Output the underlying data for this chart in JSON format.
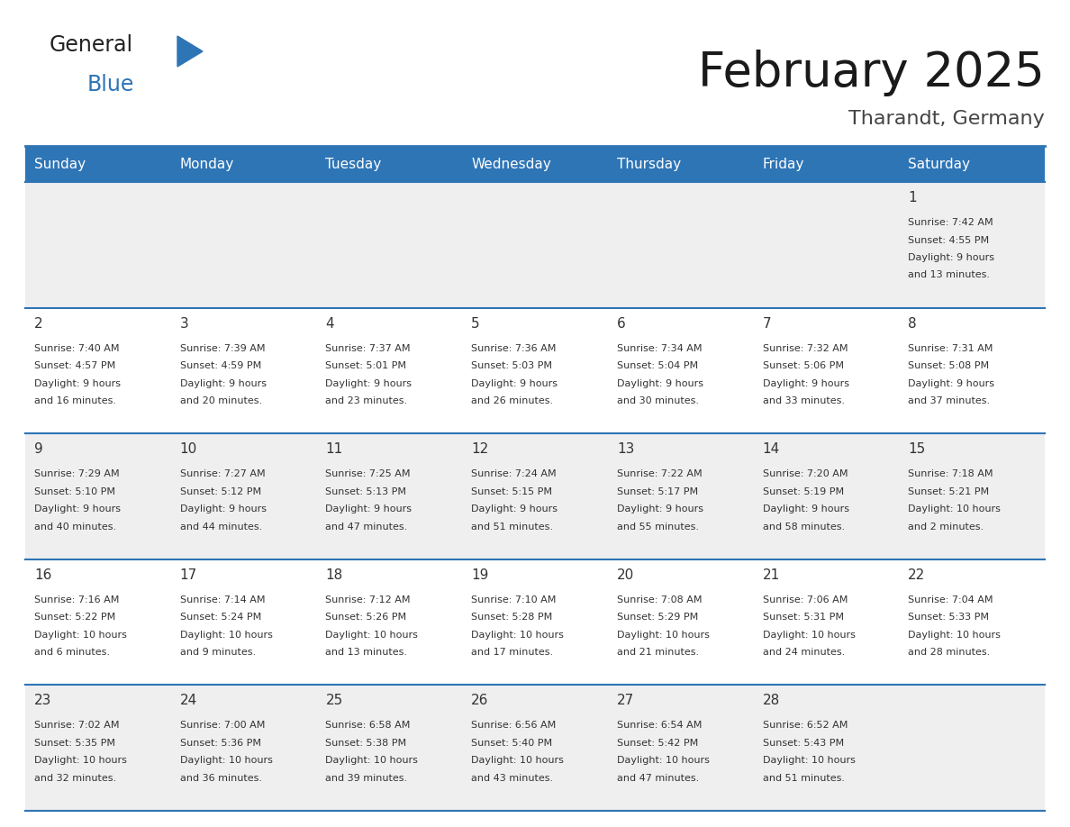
{
  "title": "February 2025",
  "subtitle": "Tharandt, Germany",
  "header_bg": "#2E75B6",
  "header_text_color": "#FFFFFF",
  "cell_bg_odd": "#EFEFEF",
  "cell_bg_even": "#FFFFFF",
  "border_color": "#2E75B6",
  "text_color": "#333333",
  "day_names": [
    "Sunday",
    "Monday",
    "Tuesday",
    "Wednesday",
    "Thursday",
    "Friday",
    "Saturday"
  ],
  "days": [
    {
      "day": 1,
      "col": 6,
      "row": 0,
      "sunrise": "7:42 AM",
      "sunset": "4:55 PM",
      "daylight_h": "9 hours",
      "daylight_m": "13 minutes"
    },
    {
      "day": 2,
      "col": 0,
      "row": 1,
      "sunrise": "7:40 AM",
      "sunset": "4:57 PM",
      "daylight_h": "9 hours",
      "daylight_m": "16 minutes"
    },
    {
      "day": 3,
      "col": 1,
      "row": 1,
      "sunrise": "7:39 AM",
      "sunset": "4:59 PM",
      "daylight_h": "9 hours",
      "daylight_m": "20 minutes"
    },
    {
      "day": 4,
      "col": 2,
      "row": 1,
      "sunrise": "7:37 AM",
      "sunset": "5:01 PM",
      "daylight_h": "9 hours",
      "daylight_m": "23 minutes"
    },
    {
      "day": 5,
      "col": 3,
      "row": 1,
      "sunrise": "7:36 AM",
      "sunset": "5:03 PM",
      "daylight_h": "9 hours",
      "daylight_m": "26 minutes"
    },
    {
      "day": 6,
      "col": 4,
      "row": 1,
      "sunrise": "7:34 AM",
      "sunset": "5:04 PM",
      "daylight_h": "9 hours",
      "daylight_m": "30 minutes"
    },
    {
      "day": 7,
      "col": 5,
      "row": 1,
      "sunrise": "7:32 AM",
      "sunset": "5:06 PM",
      "daylight_h": "9 hours",
      "daylight_m": "33 minutes"
    },
    {
      "day": 8,
      "col": 6,
      "row": 1,
      "sunrise": "7:31 AM",
      "sunset": "5:08 PM",
      "daylight_h": "9 hours",
      "daylight_m": "37 minutes"
    },
    {
      "day": 9,
      "col": 0,
      "row": 2,
      "sunrise": "7:29 AM",
      "sunset": "5:10 PM",
      "daylight_h": "9 hours",
      "daylight_m": "40 minutes"
    },
    {
      "day": 10,
      "col": 1,
      "row": 2,
      "sunrise": "7:27 AM",
      "sunset": "5:12 PM",
      "daylight_h": "9 hours",
      "daylight_m": "44 minutes"
    },
    {
      "day": 11,
      "col": 2,
      "row": 2,
      "sunrise": "7:25 AM",
      "sunset": "5:13 PM",
      "daylight_h": "9 hours",
      "daylight_m": "47 minutes"
    },
    {
      "day": 12,
      "col": 3,
      "row": 2,
      "sunrise": "7:24 AM",
      "sunset": "5:15 PM",
      "daylight_h": "9 hours",
      "daylight_m": "51 minutes"
    },
    {
      "day": 13,
      "col": 4,
      "row": 2,
      "sunrise": "7:22 AM",
      "sunset": "5:17 PM",
      "daylight_h": "9 hours",
      "daylight_m": "55 minutes"
    },
    {
      "day": 14,
      "col": 5,
      "row": 2,
      "sunrise": "7:20 AM",
      "sunset": "5:19 PM",
      "daylight_h": "9 hours",
      "daylight_m": "58 minutes"
    },
    {
      "day": 15,
      "col": 6,
      "row": 2,
      "sunrise": "7:18 AM",
      "sunset": "5:21 PM",
      "daylight_h": "10 hours",
      "daylight_m": "2 minutes"
    },
    {
      "day": 16,
      "col": 0,
      "row": 3,
      "sunrise": "7:16 AM",
      "sunset": "5:22 PM",
      "daylight_h": "10 hours",
      "daylight_m": "6 minutes"
    },
    {
      "day": 17,
      "col": 1,
      "row": 3,
      "sunrise": "7:14 AM",
      "sunset": "5:24 PM",
      "daylight_h": "10 hours",
      "daylight_m": "9 minutes"
    },
    {
      "day": 18,
      "col": 2,
      "row": 3,
      "sunrise": "7:12 AM",
      "sunset": "5:26 PM",
      "daylight_h": "10 hours",
      "daylight_m": "13 minutes"
    },
    {
      "day": 19,
      "col": 3,
      "row": 3,
      "sunrise": "7:10 AM",
      "sunset": "5:28 PM",
      "daylight_h": "10 hours",
      "daylight_m": "17 minutes"
    },
    {
      "day": 20,
      "col": 4,
      "row": 3,
      "sunrise": "7:08 AM",
      "sunset": "5:29 PM",
      "daylight_h": "10 hours",
      "daylight_m": "21 minutes"
    },
    {
      "day": 21,
      "col": 5,
      "row": 3,
      "sunrise": "7:06 AM",
      "sunset": "5:31 PM",
      "daylight_h": "10 hours",
      "daylight_m": "24 minutes"
    },
    {
      "day": 22,
      "col": 6,
      "row": 3,
      "sunrise": "7:04 AM",
      "sunset": "5:33 PM",
      "daylight_h": "10 hours",
      "daylight_m": "28 minutes"
    },
    {
      "day": 23,
      "col": 0,
      "row": 4,
      "sunrise": "7:02 AM",
      "sunset": "5:35 PM",
      "daylight_h": "10 hours",
      "daylight_m": "32 minutes"
    },
    {
      "day": 24,
      "col": 1,
      "row": 4,
      "sunrise": "7:00 AM",
      "sunset": "5:36 PM",
      "daylight_h": "10 hours",
      "daylight_m": "36 minutes"
    },
    {
      "day": 25,
      "col": 2,
      "row": 4,
      "sunrise": "6:58 AM",
      "sunset": "5:38 PM",
      "daylight_h": "10 hours",
      "daylight_m": "39 minutes"
    },
    {
      "day": 26,
      "col": 3,
      "row": 4,
      "sunrise": "6:56 AM",
      "sunset": "5:40 PM",
      "daylight_h": "10 hours",
      "daylight_m": "43 minutes"
    },
    {
      "day": 27,
      "col": 4,
      "row": 4,
      "sunrise": "6:54 AM",
      "sunset": "5:42 PM",
      "daylight_h": "10 hours",
      "daylight_m": "47 minutes"
    },
    {
      "day": 28,
      "col": 5,
      "row": 4,
      "sunrise": "6:52 AM",
      "sunset": "5:43 PM",
      "daylight_h": "10 hours",
      "daylight_m": "51 minutes"
    }
  ],
  "logo_text1": "General",
  "logo_text2": "Blue",
  "logo_color1": "#222222",
  "logo_color2": "#2E75B6",
  "logo_triangle_color": "#2E75B6",
  "title_fontsize": 38,
  "subtitle_fontsize": 16,
  "header_fontsize": 11,
  "day_num_fontsize": 11,
  "cell_fontsize": 8
}
